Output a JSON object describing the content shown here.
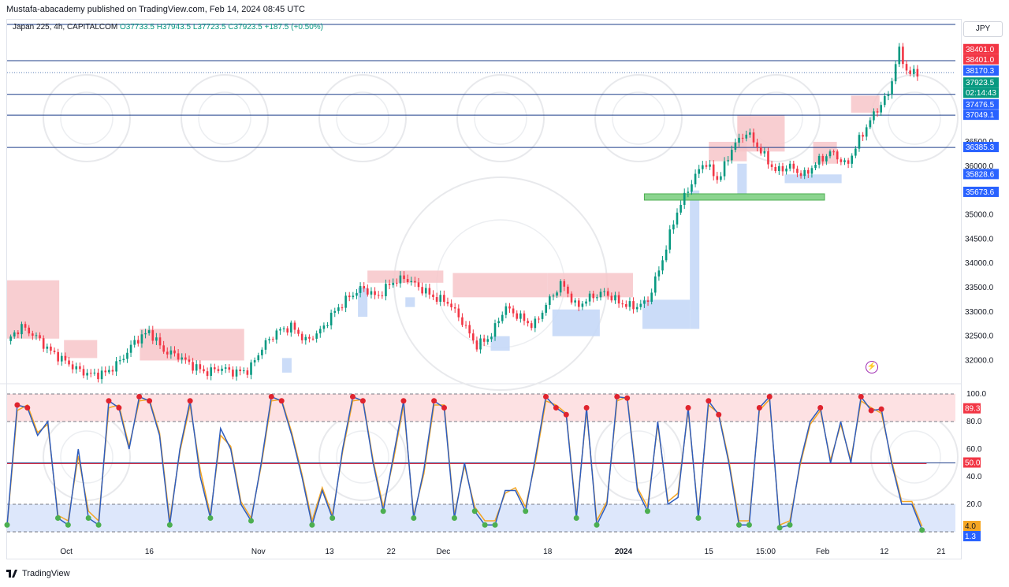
{
  "header": {
    "published_by": "Mustafa-abacademy published on TradingView.com, Feb 14, 2024 08:45 UTC"
  },
  "legend": {
    "symbol": "Japan 225, 4h, CAPITALCOM",
    "ohlc": "O37733.5 H37943.5 L37723.5 C37923.5",
    "change": "+187.5 (+0.50%)"
  },
  "currency": "JPY",
  "footer": {
    "brand": "TradingView"
  },
  "colors": {
    "up": "#089981",
    "down": "#f23645",
    "level_line": "#2962ff",
    "resistance_zone": "#f7c6c9",
    "support_zone": "#c5d8f7",
    "green_zone": "#8bd48f",
    "osc_fast": "#2f5dbd",
    "osc_slow": "#f5a623",
    "overbought_zone": "#fde1e3",
    "oversold_zone": "#dde7fb"
  },
  "chart_data": [
    {
      "type": "candlestick",
      "title": "Japan 225, 4h, CAPITALCOM",
      "ylim": [
        31700,
        38900
      ],
      "y_ticks": [
        32000,
        32500,
        33000,
        33500,
        34000,
        34500,
        35000,
        35500,
        36000,
        36500
      ],
      "x_ticks": [
        "Oct",
        "16",
        "Nov",
        "13",
        "22",
        "Dec",
        "18",
        "2024",
        "15",
        "15:00",
        "Feb",
        "12",
        "21"
      ],
      "x_tick_positions": [
        0.0625,
        0.15,
        0.265,
        0.34,
        0.405,
        0.46,
        0.57,
        0.65,
        0.74,
        0.8,
        0.86,
        0.925,
        0.985
      ],
      "horizontal_levels": [
        38170.3,
        37476.5,
        37049.1,
        36385.3
      ],
      "last_price_line": 37923.5,
      "price_labels": [
        {
          "text": "38401.0",
          "value": 38401.0,
          "color": "#f23645"
        },
        {
          "text": "38401.0",
          "value": 38401.0,
          "color": "#f23645"
        },
        {
          "text": "38170.3",
          "value": 38170.3,
          "color": "#2962ff"
        },
        {
          "text": "37923.5",
          "value": 37923.5,
          "color": "#089981"
        },
        {
          "text": "02:14:43",
          "value": 37923.5,
          "color": "#089981"
        },
        {
          "text": "37476.5",
          "value": 37476.5,
          "color": "#2962ff"
        },
        {
          "text": "37049.1",
          "value": 37049.1,
          "color": "#2962ff"
        },
        {
          "text": "36385.3",
          "value": 36385.3,
          "color": "#2962ff"
        },
        {
          "text": "35828.6",
          "value": 35828.6,
          "color": "#2962ff"
        },
        {
          "text": "35673.6",
          "value": 35673.6,
          "color": "#2962ff"
        }
      ],
      "close_path": [
        [
          0.0,
          32400
        ],
        [
          0.015,
          32700
        ],
        [
          0.03,
          32500
        ],
        [
          0.045,
          32200
        ],
        [
          0.06,
          32000
        ],
        [
          0.075,
          31800
        ],
        [
          0.09,
          31700
        ],
        [
          0.105,
          31750
        ],
        [
          0.12,
          32000
        ],
        [
          0.135,
          32400
        ],
        [
          0.15,
          32600
        ],
        [
          0.165,
          32200
        ],
        [
          0.18,
          32100
        ],
        [
          0.195,
          31900
        ],
        [
          0.21,
          31750
        ],
        [
          0.225,
          31850
        ],
        [
          0.24,
          31750
        ],
        [
          0.255,
          31800
        ],
        [
          0.27,
          32300
        ],
        [
          0.285,
          32600
        ],
        [
          0.3,
          32700
        ],
        [
          0.315,
          32400
        ],
        [
          0.33,
          32600
        ],
        [
          0.345,
          33000
        ],
        [
          0.36,
          33300
        ],
        [
          0.375,
          33500
        ],
        [
          0.39,
          33300
        ],
        [
          0.405,
          33600
        ],
        [
          0.42,
          33700
        ],
        [
          0.435,
          33500
        ],
        [
          0.45,
          33300
        ],
        [
          0.465,
          33200
        ],
        [
          0.48,
          32800
        ],
        [
          0.495,
          32300
        ],
        [
          0.51,
          32500
        ],
        [
          0.525,
          33100
        ],
        [
          0.54,
          32900
        ],
        [
          0.555,
          32700
        ],
        [
          0.57,
          33200
        ],
        [
          0.585,
          33600
        ],
        [
          0.6,
          33100
        ],
        [
          0.615,
          33300
        ],
        [
          0.63,
          33400
        ],
        [
          0.645,
          33200
        ],
        [
          0.66,
          33100
        ],
        [
          0.675,
          33200
        ],
        [
          0.69,
          34000
        ],
        [
          0.705,
          35000
        ],
        [
          0.72,
          35600
        ],
        [
          0.735,
          36100
        ],
        [
          0.75,
          35700
        ],
        [
          0.765,
          36400
        ],
        [
          0.78,
          36700
        ],
        [
          0.795,
          36300
        ],
        [
          0.81,
          35900
        ],
        [
          0.825,
          36000
        ],
        [
          0.84,
          35800
        ],
        [
          0.855,
          36100
        ],
        [
          0.87,
          36300
        ],
        [
          0.885,
          36000
        ],
        [
          0.9,
          36600
        ],
        [
          0.915,
          37100
        ],
        [
          0.93,
          37500
        ],
        [
          0.94,
          38400
        ],
        [
          0.95,
          37900
        ],
        [
          0.96,
          37923.5
        ]
      ],
      "resistance_zones": [
        {
          "x": [
            0.0,
            0.055
          ],
          "y": [
            32450,
            33650
          ]
        },
        {
          "x": [
            0.06,
            0.095
          ],
          "y": [
            32050,
            32420
          ]
        },
        {
          "x": [
            0.14,
            0.25
          ],
          "y": [
            32000,
            32650
          ]
        },
        {
          "x": [
            0.38,
            0.46
          ],
          "y": [
            33600,
            33850
          ]
        },
        {
          "x": [
            0.47,
            0.57
          ],
          "y": [
            33300,
            33800
          ]
        },
        {
          "x": [
            0.57,
            0.66
          ],
          "y": [
            33300,
            33800
          ]
        },
        {
          "x": [
            0.74,
            0.78
          ],
          "y": [
            36100,
            36500
          ]
        },
        {
          "x": [
            0.77,
            0.82
          ],
          "y": [
            36300,
            37050
          ]
        },
        {
          "x": [
            0.85,
            0.875
          ],
          "y": [
            36050,
            36500
          ]
        },
        {
          "x": [
            0.89,
            0.92
          ],
          "y": [
            37100,
            37450
          ]
        }
      ],
      "support_zones": [
        {
          "x": [
            0.29,
            0.3
          ],
          "y": [
            31750,
            32050
          ]
        },
        {
          "x": [
            0.37,
            0.38
          ],
          "y": [
            32900,
            33500
          ]
        },
        {
          "x": [
            0.42,
            0.43
          ],
          "y": [
            33100,
            33300
          ]
        },
        {
          "x": [
            0.51,
            0.53
          ],
          "y": [
            32200,
            32500
          ]
        },
        {
          "x": [
            0.575,
            0.625
          ],
          "y": [
            32500,
            33050
          ]
        },
        {
          "x": [
            0.67,
            0.72
          ],
          "y": [
            32650,
            33250
          ]
        },
        {
          "x": [
            0.72,
            0.73
          ],
          "y": [
            32650,
            35500
          ]
        },
        {
          "x": [
            0.77,
            0.78
          ],
          "y": [
            35400,
            36050
          ]
        },
        {
          "x": [
            0.82,
            0.88
          ],
          "y": [
            35650,
            35830
          ]
        }
      ],
      "green_zone": {
        "x": [
          0.672,
          0.862
        ],
        "y": [
          35300,
          35430
        ]
      }
    },
    {
      "type": "line",
      "title": "Stochastic oscillator",
      "ylim": [
        0,
        100
      ],
      "y_ticks": [
        100.0,
        80.0,
        60.0,
        40.0,
        20.0
      ],
      "levels": [
        100,
        80,
        50,
        20,
        0
      ],
      "value_labels": [
        {
          "text": "89.3",
          "value": 89.3,
          "color": "#f23645"
        },
        {
          "text": "50.0",
          "value": 50.0,
          "color": "#f23645"
        },
        {
          "text": "4.0",
          "value": 4.0,
          "color": "#f5a623"
        },
        {
          "text": "1.3",
          "value": 1.3,
          "color": "#2962ff"
        }
      ],
      "series": [
        {
          "values": [
            5,
            92,
            90,
            70,
            80,
            10,
            5,
            60,
            10,
            5,
            95,
            90,
            60,
            98,
            95,
            70,
            5,
            60,
            95,
            40,
            10,
            75,
            60,
            20,
            8,
            50,
            98,
            95,
            70,
            40,
            5,
            30,
            10,
            60,
            98,
            95,
            50,
            15,
            55,
            95,
            10,
            45,
            95,
            90,
            10,
            50,
            15,
            5,
            5,
            30,
            30,
            15,
            55,
            98,
            90,
            85,
            10,
            90,
            5,
            20,
            98,
            97,
            30,
            15,
            80,
            20,
            25,
            90,
            10,
            95,
            85,
            50,
            5,
            5,
            90,
            98,
            3,
            5,
            50,
            80,
            90,
            50,
            80,
            50,
            98,
            88,
            89,
            50,
            20,
            20,
            1.3
          ]
        },
        {
          "values": [
            4,
            88,
            92,
            72,
            78,
            12,
            8,
            55,
            15,
            8,
            90,
            92,
            62,
            95,
            96,
            72,
            8,
            58,
            92,
            45,
            12,
            70,
            62,
            22,
            10,
            48,
            95,
            96,
            72,
            42,
            8,
            32,
            12,
            58,
            95,
            96,
            52,
            18,
            52,
            92,
            12,
            42,
            92,
            92,
            12,
            48,
            18,
            8,
            8,
            28,
            32,
            18,
            52,
            95,
            92,
            86,
            12,
            88,
            8,
            22,
            95,
            98,
            32,
            18,
            78,
            22,
            28,
            88,
            12,
            92,
            86,
            52,
            8,
            8,
            88,
            96,
            5,
            8,
            48,
            78,
            88,
            52,
            78,
            52,
            95,
            90,
            86,
            52,
            22,
            22,
            4.0
          ]
        }
      ]
    }
  ]
}
